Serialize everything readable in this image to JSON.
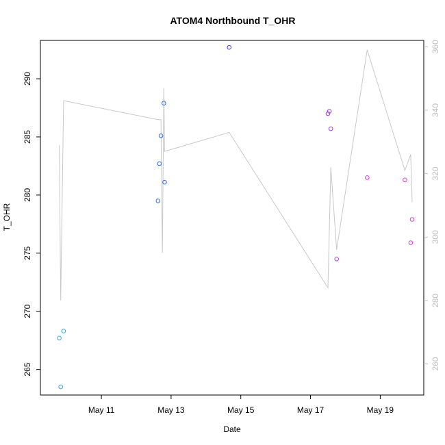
{
  "chart_data": {
    "type": "scatter",
    "title": "ATOM4 Northbound T_OHR",
    "xlabel": "Date",
    "ylabel": "T_OHR",
    "xlim": [
      "2020-05-09 06:00",
      "2020-05-20 06:00"
    ],
    "ylim": [
      262.8,
      293.3
    ],
    "y2lim": [
      250.2,
      362
    ],
    "x_ticks": [
      {
        "date": "2020-05-11",
        "label": "May 11"
      },
      {
        "date": "2020-05-13",
        "label": "May 13"
      },
      {
        "date": "2020-05-15",
        "label": "May 15"
      },
      {
        "date": "2020-05-17",
        "label": "May 17"
      },
      {
        "date": "2020-05-19",
        "label": "May 19"
      }
    ],
    "y_ticks": [
      265,
      270,
      275,
      280,
      285,
      290
    ],
    "y2_ticks": [
      260,
      280,
      300,
      320,
      340,
      360
    ],
    "points": [
      {
        "x": "2020-05-09 19:00",
        "y": 267.7,
        "color": "#2ea8e6"
      },
      {
        "x": "2020-05-09 20:00",
        "y": 263.5,
        "color": "#2ea8e6"
      },
      {
        "x": "2020-05-09 22:00",
        "y": 268.3,
        "color": "#2ea8e6"
      },
      {
        "x": "2020-05-12 15:00",
        "y": 279.5,
        "color": "#2f6be6"
      },
      {
        "x": "2020-05-12 16:00",
        "y": 282.7,
        "color": "#2f6be6"
      },
      {
        "x": "2020-05-12 17:00",
        "y": 285.1,
        "color": "#2f6be6"
      },
      {
        "x": "2020-05-12 19:00",
        "y": 287.9,
        "color": "#2f6be6"
      },
      {
        "x": "2020-05-12 19:30",
        "y": 281.1,
        "color": "#2f6be6"
      },
      {
        "x": "2020-05-14 16:00",
        "y": 292.7,
        "color": "#3c3ce6"
      },
      {
        "x": "2020-05-17 12:00",
        "y": 287.0,
        "color": "#9a3ce6"
      },
      {
        "x": "2020-05-17 13:00",
        "y": 287.2,
        "color": "#9a3ce6"
      },
      {
        "x": "2020-05-17 14:00",
        "y": 285.7,
        "color": "#9a3ce6"
      },
      {
        "x": "2020-05-17 18:00",
        "y": 274.5,
        "color": "#b43ce6"
      },
      {
        "x": "2020-05-18 15:00",
        "y": 281.5,
        "color": "#d23ce6"
      },
      {
        "x": "2020-05-19 17:00",
        "y": 281.3,
        "color": "#e63cd2"
      },
      {
        "x": "2020-05-19 21:00",
        "y": 275.9,
        "color": "#e63cc8"
      },
      {
        "x": "2020-05-19 22:00",
        "y": 277.9,
        "color": "#e63cc8"
      }
    ],
    "secondary_line": {
      "color": "#c8c8c8",
      "points": [
        {
          "x": "2020-05-09 19:00",
          "y": 329
        },
        {
          "x": "2020-05-09 20:00",
          "y": 280
        },
        {
          "x": "2020-05-09 22:00",
          "y": 343
        },
        {
          "x": "2020-05-12 15:00",
          "y": 337
        },
        {
          "x": "2020-05-12 17:00",
          "y": 337
        },
        {
          "x": "2020-05-12 18:00",
          "y": 295
        },
        {
          "x": "2020-05-12 19:00",
          "y": 347
        },
        {
          "x": "2020-05-12 19:30",
          "y": 327
        },
        {
          "x": "2020-05-14 16:00",
          "y": 333
        },
        {
          "x": "2020-05-17 12:00",
          "y": 284
        },
        {
          "x": "2020-05-17 14:00",
          "y": 322
        },
        {
          "x": "2020-05-17 18:00",
          "y": 296
        },
        {
          "x": "2020-05-18 15:00",
          "y": 359
        },
        {
          "x": "2020-05-19 17:00",
          "y": 321
        },
        {
          "x": "2020-05-19 21:00",
          "y": 326
        },
        {
          "x": "2020-05-19 22:00",
          "y": 311
        }
      ]
    }
  }
}
